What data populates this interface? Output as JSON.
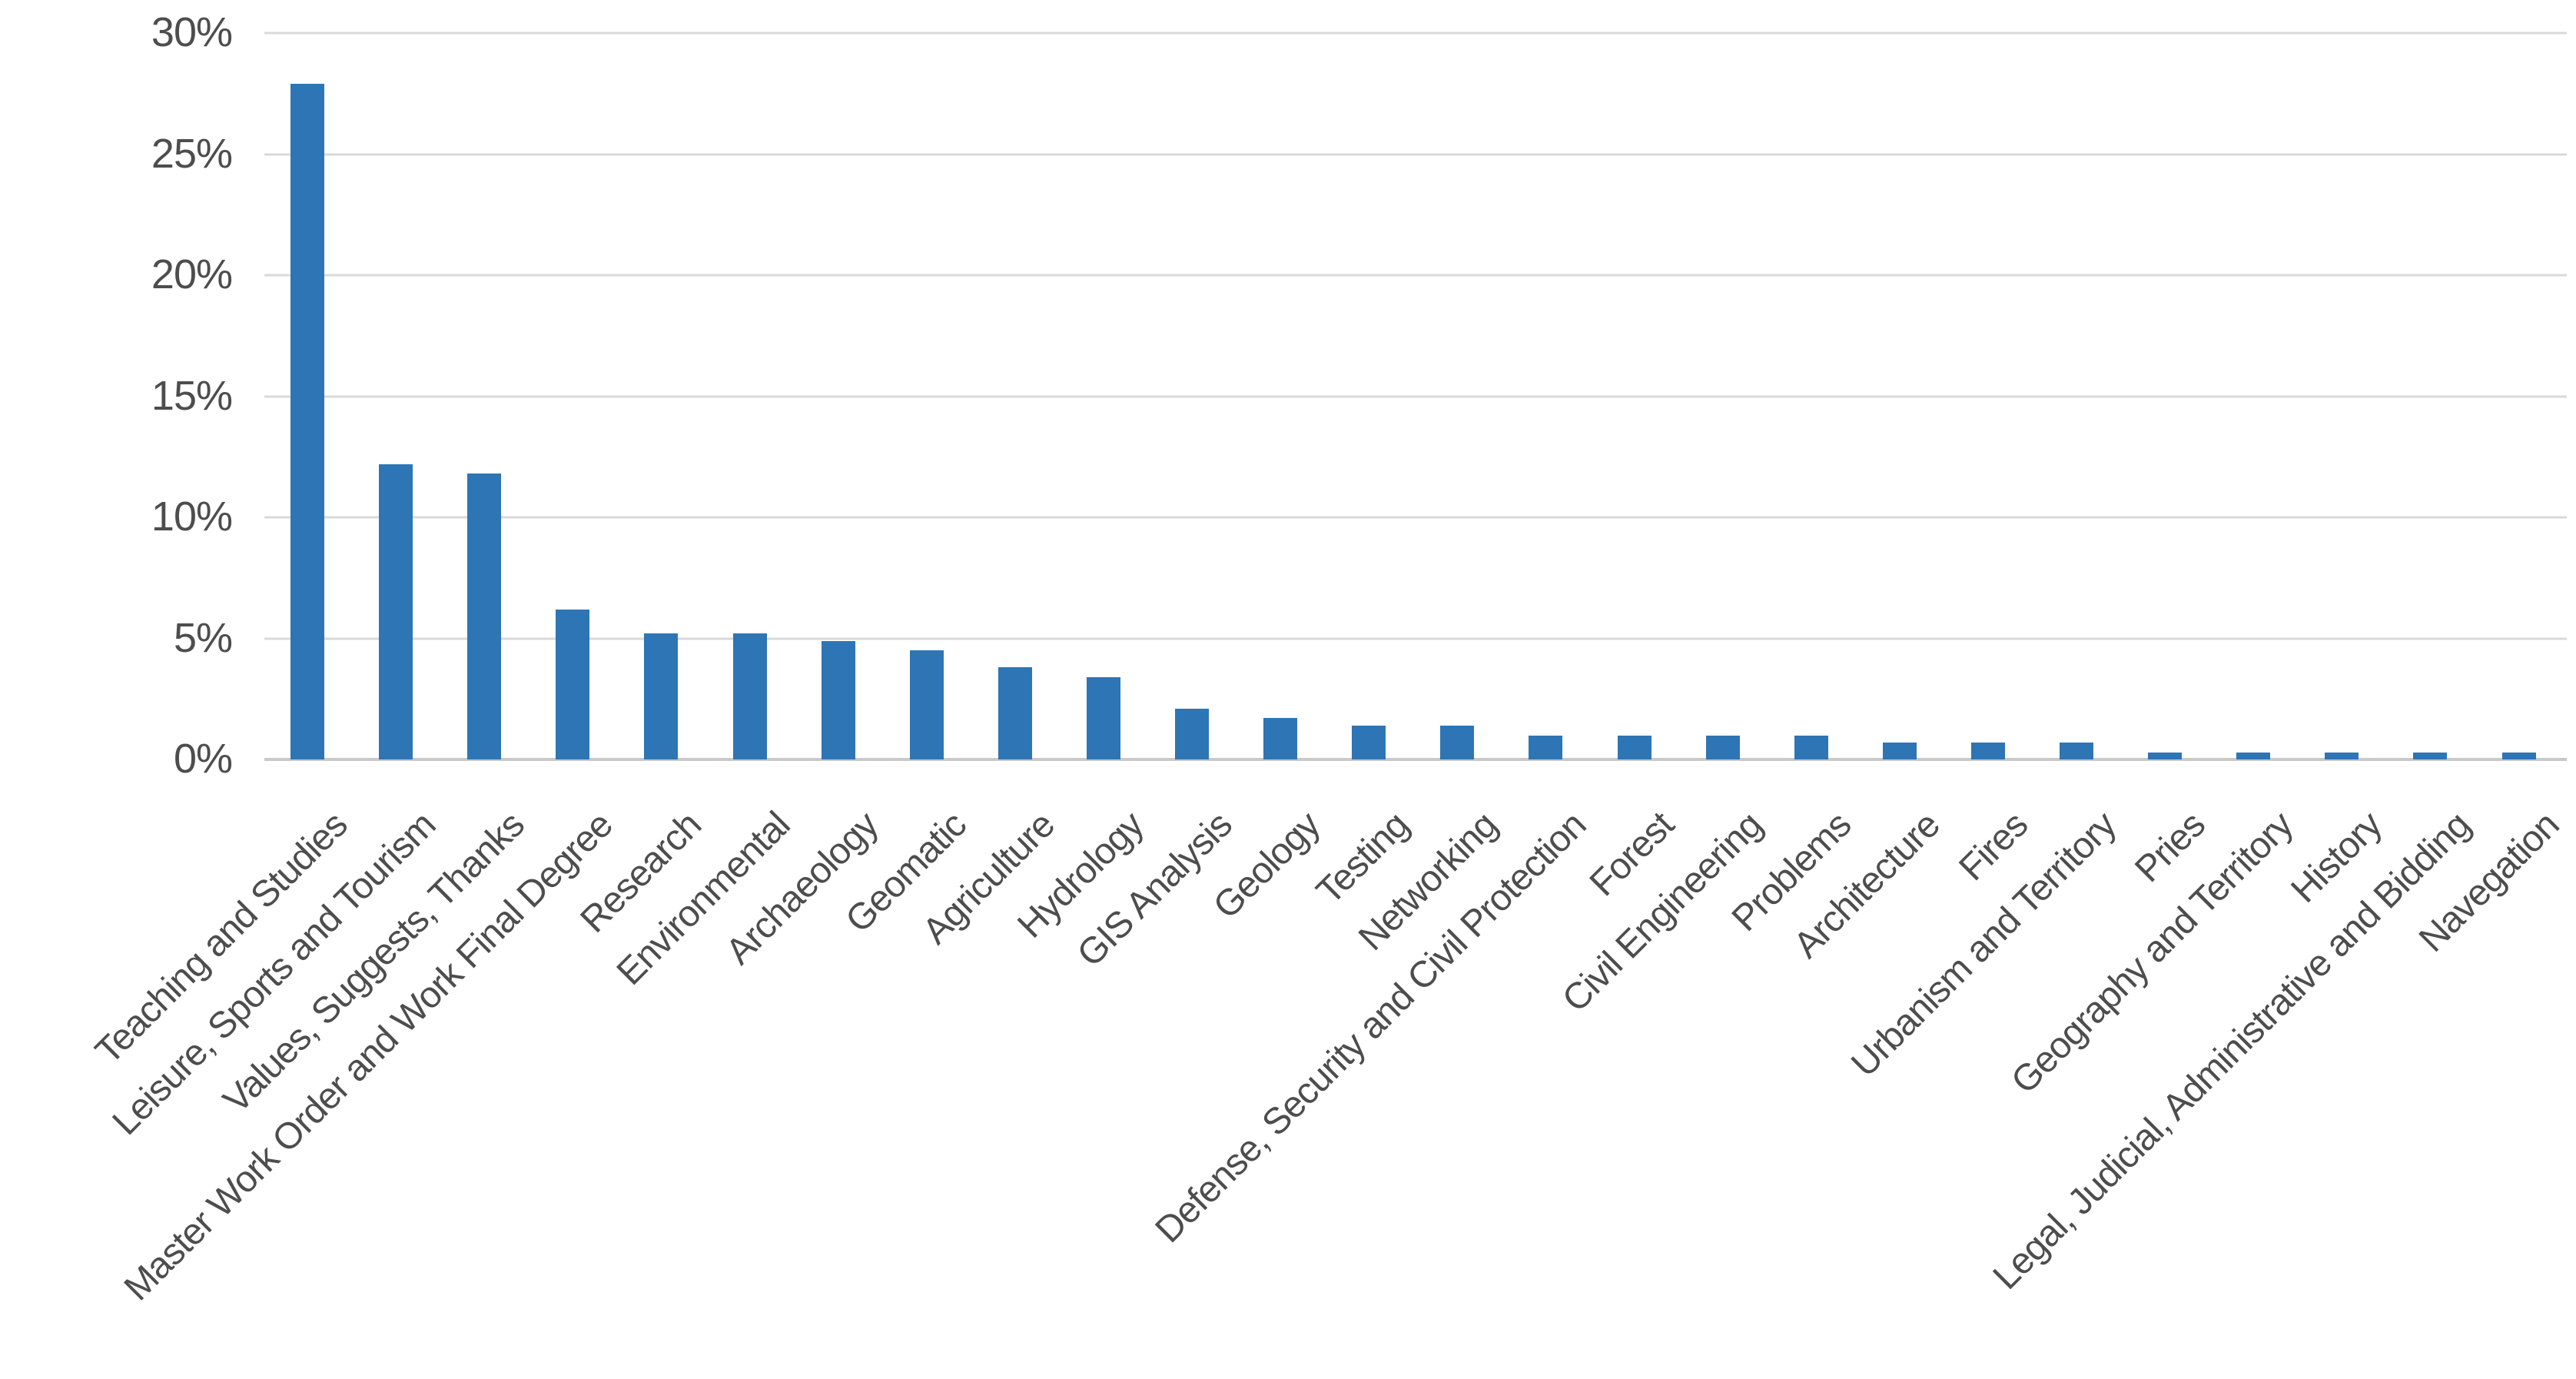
{
  "figure": {
    "background_color": "#FFFFFF",
    "bar_color": "#2E75B6",
    "gridline_color": "#D9D9D9",
    "axis_line_color": "#C9C9C9",
    "label_color": "#4D4D4D"
  },
  "chart_data": {
    "type": "bar",
    "title": "",
    "xlabel": "",
    "ylabel": "",
    "categories": [
      "Teaching and Studies",
      "Leisure, Sports and Tourism",
      "Values, Suggests, Thanks",
      "Master Work Order and Work Final Degree",
      "Research",
      "Environmental",
      "Archaeology",
      "Geomatic",
      "Agriculture",
      "Hydrology",
      "GIS Analysis",
      "Geology",
      "Testing",
      "Networking",
      "Defense, Security and Civil Protection",
      "Forest",
      "Civil Engineering",
      "Problems",
      "Architecture",
      "Fires",
      "Urbanism and Territory",
      "Pries",
      "Geography and Territory",
      "History",
      "Legal, Judicial, Administrative and Bidding",
      "Navegation"
    ],
    "values": [
      27.9,
      12.2,
      11.8,
      6.2,
      5.2,
      5.2,
      4.9,
      4.5,
      3.8,
      3.4,
      2.1,
      1.7,
      1.4,
      1.4,
      1.0,
      1.0,
      1.0,
      1.0,
      0.7,
      0.7,
      0.7,
      0.3,
      0.3,
      0.3,
      0.3,
      0.3
    ],
    "value_unit": "percent",
    "ylim": [
      0,
      30
    ],
    "ytick_step": 5,
    "ytick_labels": [
      "0%",
      "5%",
      "10%",
      "15%",
      "20%",
      "25%",
      "30%"
    ],
    "grid": true,
    "legend": false,
    "x_label_rotation_deg": 45
  }
}
